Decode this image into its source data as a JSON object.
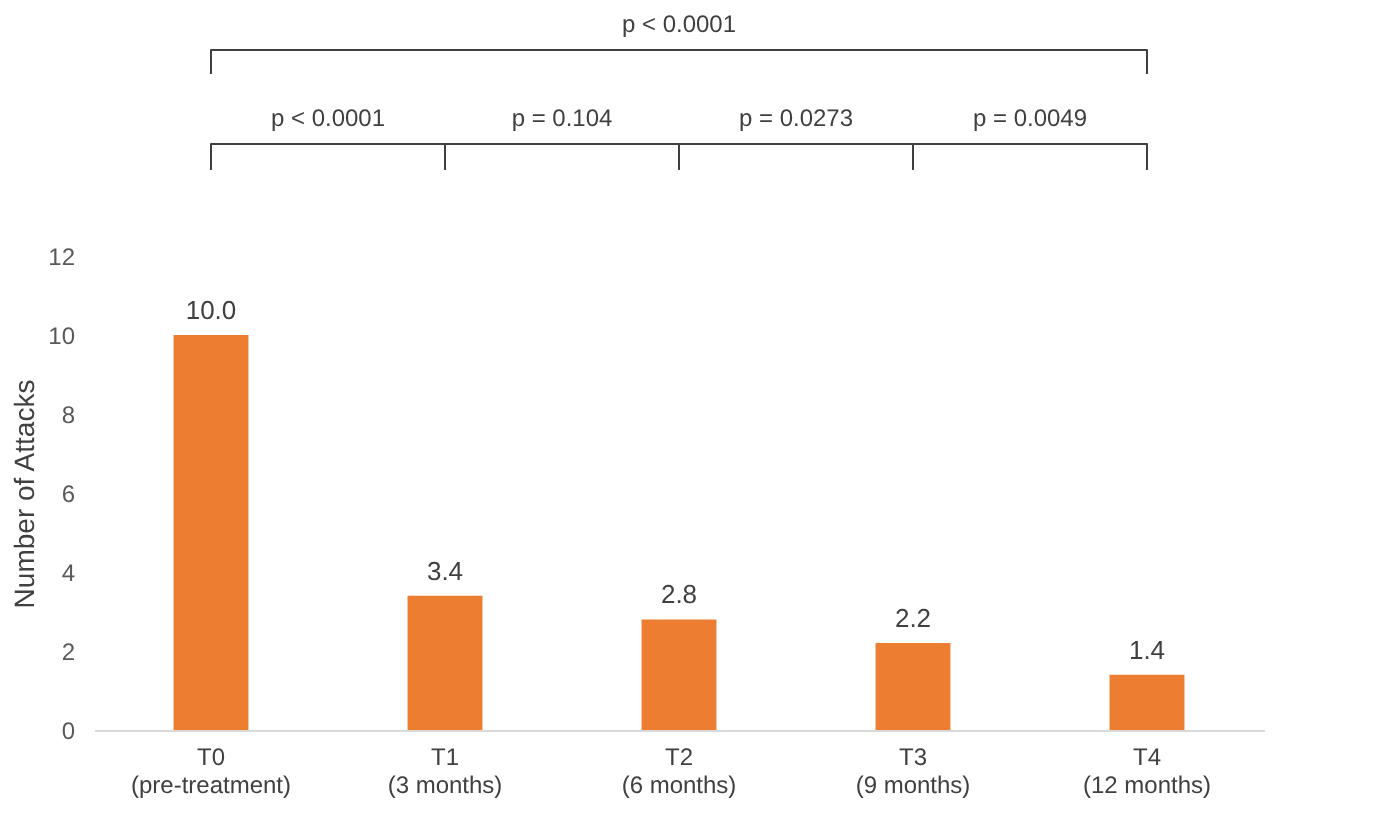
{
  "chart_data": {
    "type": "bar",
    "categories": [
      "T0\n(pre-treatment)",
      "T1\n(3 months)",
      "T2\n(6 months)",
      "T3\n(9 months)",
      "T4\n(12 months)"
    ],
    "values": [
      10.0,
      3.4,
      2.8,
      2.2,
      1.4
    ],
    "value_labels": [
      "10.0",
      "3.4",
      "2.8",
      "2.2",
      "1.4"
    ],
    "color": "#ed7d31",
    "ylabel": "Number of Attacks",
    "ylim": [
      0,
      12
    ],
    "yticks": [
      0,
      2,
      4,
      6,
      8,
      10,
      12
    ],
    "grid": false,
    "annotations": [
      "p < 0.0001",
      "p < 0.0001",
      "p = 0.104",
      "p = 0.0273",
      "p = 0.0049"
    ]
  }
}
